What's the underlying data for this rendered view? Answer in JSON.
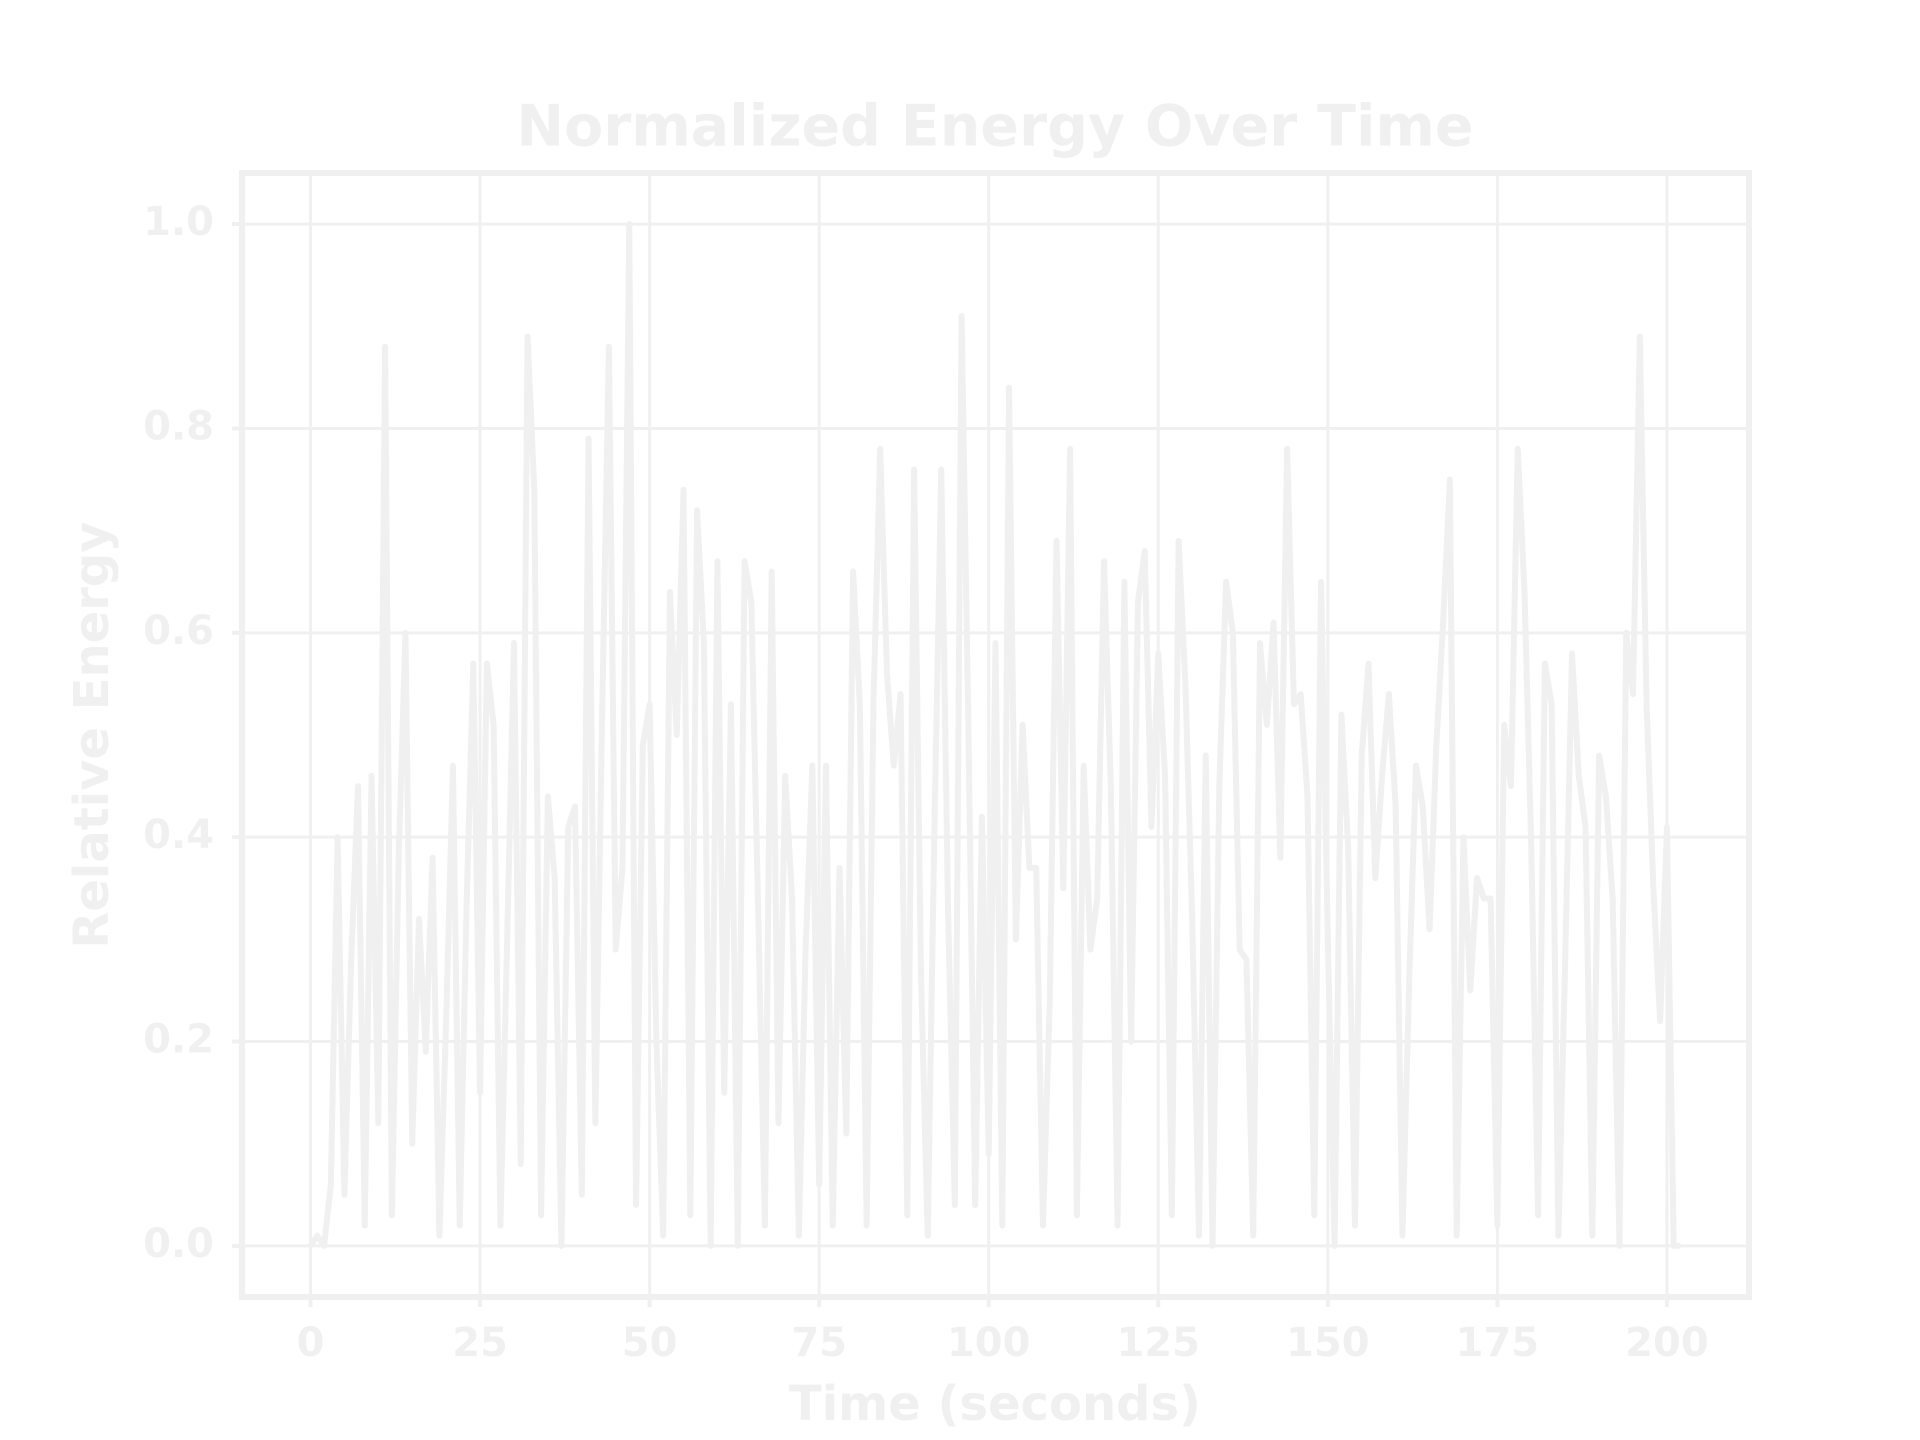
{
  "chart_data": {
    "type": "line",
    "title": "Normalized Energy Over Time",
    "xlabel": "Time (seconds)",
    "ylabel": "Relative Energy",
    "x": [
      0,
      1,
      2,
      3,
      4,
      5,
      6,
      7,
      8,
      9,
      10,
      11,
      12,
      13,
      14,
      15,
      16,
      17,
      18,
      19,
      20,
      21,
      22,
      23,
      24,
      25,
      26,
      27,
      28,
      29,
      30,
      31,
      32,
      33,
      34,
      35,
      36,
      37,
      38,
      39,
      40,
      41,
      42,
      43,
      44,
      45,
      46,
      47,
      48,
      49,
      50,
      51,
      52,
      53,
      54,
      55,
      56,
      57,
      58,
      59,
      60,
      61,
      62,
      63,
      64,
      65,
      66,
      67,
      68,
      69,
      70,
      71,
      72,
      73,
      74,
      75,
      76,
      77,
      78,
      79,
      80,
      81,
      82,
      83,
      84,
      85,
      86,
      87,
      88,
      89,
      90,
      91,
      92,
      93,
      94,
      95,
      96,
      97,
      98,
      99,
      100,
      101,
      102,
      103,
      104,
      105,
      106,
      107,
      108,
      109,
      110,
      111,
      112,
      113,
      114,
      115,
      116,
      117,
      118,
      119,
      120,
      121,
      122,
      123,
      124,
      125,
      126,
      127,
      128,
      129,
      130,
      131,
      132,
      133,
      134,
      135,
      136,
      137,
      138,
      139,
      140,
      141,
      142,
      143,
      144,
      145,
      146,
      147,
      148,
      149,
      150,
      151,
      152,
      153,
      154,
      155,
      156,
      157,
      158,
      159,
      160,
      161,
      162,
      163,
      164,
      165,
      166,
      167,
      168,
      169,
      170,
      171,
      172,
      173,
      174,
      175,
      176,
      177,
      178,
      179,
      180,
      181,
      182,
      183,
      184,
      185,
      186,
      187,
      188,
      189,
      190,
      191,
      192,
      193,
      194,
      195,
      196,
      197,
      198,
      199,
      200,
      201,
      202
    ],
    "series": [
      {
        "color": "#f0f0f0",
        "values": [
          0.0,
          0.01,
          0.0,
          0.06,
          0.4,
          0.05,
          0.28,
          0.45,
          0.02,
          0.46,
          0.12,
          0.88,
          0.03,
          0.38,
          0.6,
          0.1,
          0.32,
          0.19,
          0.38,
          0.01,
          0.22,
          0.47,
          0.02,
          0.33,
          0.57,
          0.15,
          0.57,
          0.51,
          0.02,
          0.3,
          0.59,
          0.08,
          0.89,
          0.74,
          0.03,
          0.44,
          0.36,
          0.0,
          0.41,
          0.43,
          0.05,
          0.79,
          0.12,
          0.52,
          0.88,
          0.29,
          0.37,
          1.0,
          0.04,
          0.49,
          0.53,
          0.2,
          0.01,
          0.64,
          0.5,
          0.74,
          0.03,
          0.72,
          0.59,
          0.0,
          0.67,
          0.15,
          0.53,
          0.0,
          0.67,
          0.63,
          0.33,
          0.02,
          0.66,
          0.12,
          0.46,
          0.34,
          0.01,
          0.29,
          0.47,
          0.06,
          0.47,
          0.02,
          0.37,
          0.11,
          0.66,
          0.53,
          0.02,
          0.53,
          0.78,
          0.56,
          0.47,
          0.54,
          0.03,
          0.76,
          0.27,
          0.01,
          0.41,
          0.76,
          0.33,
          0.04,
          0.91,
          0.51,
          0.04,
          0.42,
          0.09,
          0.59,
          0.02,
          0.84,
          0.3,
          0.51,
          0.37,
          0.37,
          0.02,
          0.24,
          0.69,
          0.35,
          0.78,
          0.03,
          0.47,
          0.29,
          0.34,
          0.67,
          0.45,
          0.02,
          0.65,
          0.2,
          0.63,
          0.68,
          0.41,
          0.58,
          0.46,
          0.03,
          0.69,
          0.55,
          0.32,
          0.01,
          0.48,
          0.0,
          0.45,
          0.65,
          0.6,
          0.29,
          0.28,
          0.01,
          0.59,
          0.51,
          0.61,
          0.38,
          0.78,
          0.53,
          0.54,
          0.44,
          0.03,
          0.65,
          0.3,
          0.0,
          0.52,
          0.39,
          0.02,
          0.48,
          0.57,
          0.36,
          0.46,
          0.54,
          0.43,
          0.01,
          0.26,
          0.47,
          0.43,
          0.31,
          0.49,
          0.61,
          0.75,
          0.01,
          0.4,
          0.25,
          0.36,
          0.34,
          0.34,
          0.02,
          0.51,
          0.45,
          0.78,
          0.64,
          0.39,
          0.03,
          0.57,
          0.53,
          0.01,
          0.28,
          0.58,
          0.46,
          0.41,
          0.01,
          0.48,
          0.44,
          0.34,
          0.0,
          0.6,
          0.54,
          0.89,
          0.53,
          0.35,
          0.22,
          0.41,
          0.0,
          0.0
        ]
      }
    ],
    "xlim": [
      -10.1,
      212.1
    ],
    "ylim": [
      -0.05,
      1.05
    ],
    "xticks": [
      0,
      25,
      50,
      75,
      100,
      125,
      150,
      175,
      200
    ],
    "yticks": [
      {
        "value": 0,
        "label": "0.0"
      },
      0.2,
      0.4,
      0.6,
      0.8,
      {
        "value": 1,
        "label": "1.0"
      }
    ],
    "grid": true
  }
}
